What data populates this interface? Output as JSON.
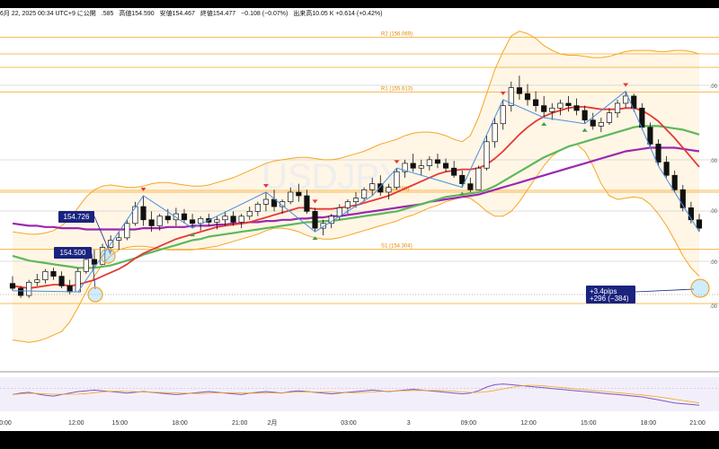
{
  "info": {
    "date": "6月 22, 2025 00:34 UTC+9 に公開",
    "open": ".585",
    "high": "高値154.590",
    "low": "安値154.467",
    "close": "終値154.477",
    "change": "−0.108 (−0.07%)",
    "volume": "出来高10.05 K +0.614 (+0.42%)"
  },
  "watermark": "USDJPY",
  "chart_data": {
    "type": "candlestick",
    "levels": [
      {
        "name": "R2",
        "label": "R2 (156.069)",
        "value": 156.069
      },
      {
        "name": "R1",
        "label": "R1 (155.613)",
        "value": 155.613
      },
      {
        "name": "P",
        "label": "P (154.780)",
        "value": 154.78
      },
      {
        "name": "S1",
        "label": "S1 (154.304)",
        "value": 154.304
      }
    ],
    "annotations": [
      {
        "text": "154.726"
      },
      {
        "text": "154.500"
      },
      {
        "text": "+3.4pips\n+296 (−384)"
      }
    ],
    "x_ticks": [
      "0:00",
      "12:00",
      "15:00",
      "18:00",
      "21:00",
      "2月",
      "03:00",
      "3",
      "09:00",
      "12:00",
      "15:00",
      "18:00",
      "21:00"
    ],
    "right_edge_labels": [
      ".00",
      ".00",
      ".00",
      ".00",
      ".00",
      ".00"
    ],
    "ohlc": [
      [
        154.02,
        154.08,
        153.96,
        153.98
      ],
      [
        153.98,
        154.0,
        153.9,
        153.92
      ],
      [
        153.92,
        154.05,
        153.9,
        154.03
      ],
      [
        154.03,
        154.1,
        154.0,
        154.05
      ],
      [
        154.05,
        154.14,
        154.02,
        154.12
      ],
      [
        154.12,
        154.15,
        154.05,
        154.08
      ],
      [
        154.08,
        154.12,
        153.98,
        154.0
      ],
      [
        154.0,
        154.05,
        153.93,
        153.95
      ],
      [
        153.95,
        154.15,
        153.95,
        154.12
      ],
      [
        154.12,
        154.25,
        154.1,
        154.22
      ],
      [
        154.22,
        154.3,
        154.15,
        154.18
      ],
      [
        154.18,
        154.35,
        154.18,
        154.32
      ],
      [
        154.32,
        154.42,
        154.28,
        154.38
      ],
      [
        154.38,
        154.45,
        154.3,
        154.4
      ],
      [
        154.4,
        154.55,
        154.38,
        154.52
      ],
      [
        154.52,
        154.7,
        154.5,
        154.66
      ],
      [
        154.66,
        154.75,
        154.5,
        154.55
      ],
      [
        154.55,
        154.62,
        154.45,
        154.5
      ],
      [
        154.5,
        154.6,
        154.46,
        154.58
      ],
      [
        154.58,
        154.64,
        154.52,
        154.55
      ],
      [
        154.55,
        154.65,
        154.5,
        154.6
      ],
      [
        154.6,
        154.64,
        154.52,
        154.55
      ],
      [
        154.55,
        154.6,
        154.48,
        154.52
      ],
      [
        154.52,
        154.58,
        154.46,
        154.56
      ],
      [
        154.56,
        154.6,
        154.5,
        154.53
      ],
      [
        154.53,
        154.58,
        154.47,
        154.55
      ],
      [
        154.55,
        154.62,
        154.5,
        154.58
      ],
      [
        154.58,
        154.62,
        154.5,
        154.53
      ],
      [
        154.53,
        154.6,
        154.48,
        154.58
      ],
      [
        154.58,
        154.66,
        154.55,
        154.62
      ],
      [
        154.62,
        154.7,
        154.58,
        154.68
      ],
      [
        154.68,
        154.78,
        154.62,
        154.72
      ],
      [
        154.72,
        154.8,
        154.62,
        154.66
      ],
      [
        154.66,
        154.72,
        154.6,
        154.7
      ],
      [
        154.7,
        154.82,
        154.68,
        154.78
      ],
      [
        154.78,
        154.85,
        154.7,
        154.75
      ],
      [
        154.75,
        154.8,
        154.6,
        154.62
      ],
      [
        154.62,
        154.65,
        154.45,
        154.48
      ],
      [
        154.48,
        154.55,
        154.42,
        154.52
      ],
      [
        154.52,
        154.6,
        154.48,
        154.58
      ],
      [
        154.58,
        154.68,
        154.55,
        154.65
      ],
      [
        154.65,
        154.72,
        154.6,
        154.7
      ],
      [
        154.7,
        154.78,
        154.65,
        154.73
      ],
      [
        154.73,
        154.82,
        154.7,
        154.8
      ],
      [
        154.8,
        154.9,
        154.75,
        154.85
      ],
      [
        154.85,
        154.92,
        154.75,
        154.78
      ],
      [
        154.78,
        154.85,
        154.72,
        154.82
      ],
      [
        154.82,
        154.98,
        154.8,
        154.95
      ],
      [
        154.95,
        155.05,
        154.9,
        155.02
      ],
      [
        155.02,
        155.1,
        154.95,
        154.98
      ],
      [
        154.98,
        155.05,
        154.92,
        155.0
      ],
      [
        155.0,
        155.08,
        154.96,
        155.05
      ],
      [
        155.05,
        155.1,
        154.98,
        155.02
      ],
      [
        155.02,
        155.06,
        154.95,
        154.98
      ],
      [
        154.98,
        155.04,
        154.9,
        154.92
      ],
      [
        154.92,
        154.96,
        154.82,
        154.85
      ],
      [
        154.85,
        154.9,
        154.78,
        154.8
      ],
      [
        154.8,
        155.0,
        154.8,
        154.98
      ],
      [
        154.98,
        155.25,
        154.96,
        155.2
      ],
      [
        155.2,
        155.4,
        155.15,
        155.35
      ],
      [
        155.35,
        155.55,
        155.3,
        155.5
      ],
      [
        155.5,
        155.7,
        155.45,
        155.65
      ],
      [
        155.65,
        155.75,
        155.55,
        155.6
      ],
      [
        155.6,
        155.68,
        155.5,
        155.55
      ],
      [
        155.55,
        155.62,
        155.45,
        155.5
      ],
      [
        155.5,
        155.58,
        155.4,
        155.45
      ],
      [
        155.45,
        155.52,
        155.38,
        155.48
      ],
      [
        155.48,
        155.55,
        155.42,
        155.52
      ],
      [
        155.52,
        155.58,
        155.45,
        155.5
      ],
      [
        155.5,
        155.56,
        155.42,
        155.46
      ],
      [
        155.46,
        155.5,
        155.35,
        155.38
      ],
      [
        155.38,
        155.44,
        155.3,
        155.33
      ],
      [
        155.33,
        155.4,
        155.28,
        155.36
      ],
      [
        155.36,
        155.48,
        155.34,
        155.44
      ],
      [
        155.44,
        155.55,
        155.4,
        155.52
      ],
      [
        155.52,
        155.62,
        155.48,
        155.58
      ],
      [
        155.58,
        155.6,
        155.45,
        155.48
      ],
      [
        155.48,
        155.52,
        155.3,
        155.32
      ],
      [
        155.32,
        155.36,
        155.15,
        155.18
      ],
      [
        155.18,
        155.22,
        155.0,
        155.03
      ],
      [
        155.03,
        155.08,
        154.9,
        154.92
      ],
      [
        154.92,
        154.96,
        154.78,
        154.8
      ],
      [
        154.8,
        154.84,
        154.62,
        154.65
      ],
      [
        154.65,
        154.7,
        154.52,
        154.55
      ],
      [
        154.55,
        154.6,
        154.45,
        154.48
      ]
    ],
    "ma_red": [
      154.0,
      153.99,
      153.98,
      153.99,
      154.0,
      154.01,
      154.01,
      154.0,
      154.01,
      154.03,
      154.05,
      154.08,
      154.11,
      154.14,
      154.18,
      154.23,
      154.27,
      154.3,
      154.33,
      154.36,
      154.39,
      154.41,
      154.43,
      154.45,
      154.47,
      154.49,
      154.5,
      154.51,
      154.52,
      154.53,
      154.55,
      154.57,
      154.59,
      154.61,
      154.63,
      154.65,
      154.65,
      154.64,
      154.64,
      154.64,
      154.65,
      154.66,
      154.67,
      154.69,
      154.71,
      154.73,
      154.75,
      154.78,
      154.81,
      154.84,
      154.87,
      154.9,
      154.93,
      154.95,
      154.96,
      154.97,
      154.97,
      154.98,
      155.01,
      155.06,
      155.12,
      155.19,
      155.26,
      155.32,
      155.37,
      155.41,
      155.44,
      155.46,
      155.48,
      155.49,
      155.49,
      155.48,
      155.47,
      155.47,
      155.47,
      155.48,
      155.48,
      155.46,
      155.42,
      155.37,
      155.3,
      155.23,
      155.15,
      155.07,
      154.99
    ],
    "ma_green": [
      154.25,
      154.23,
      154.21,
      154.2,
      154.19,
      154.18,
      154.17,
      154.16,
      154.15,
      154.15,
      154.15,
      154.16,
      154.17,
      154.19,
      154.21,
      154.23,
      154.26,
      154.28,
      154.3,
      154.32,
      154.34,
      154.36,
      154.38,
      154.39,
      154.41,
      154.42,
      154.43,
      154.44,
      154.45,
      154.46,
      154.47,
      154.48,
      154.49,
      154.5,
      154.51,
      154.52,
      154.53,
      154.53,
      154.54,
      154.54,
      154.55,
      154.56,
      154.57,
      154.58,
      154.59,
      154.6,
      154.61,
      154.62,
      154.64,
      154.66,
      154.68,
      154.7,
      154.72,
      154.74,
      154.75,
      154.76,
      154.77,
      154.78,
      154.8,
      154.83,
      154.87,
      154.91,
      154.95,
      154.99,
      155.03,
      155.07,
      155.1,
      155.13,
      155.16,
      155.18,
      155.2,
      155.22,
      155.24,
      155.26,
      155.28,
      155.3,
      155.32,
      155.33,
      155.33,
      155.33,
      155.32,
      155.31,
      155.3,
      155.28,
      155.26
    ],
    "ma_purple": [
      154.52,
      154.51,
      154.5,
      154.5,
      154.49,
      154.49,
      154.48,
      154.48,
      154.48,
      154.47,
      154.47,
      154.47,
      154.47,
      154.47,
      154.47,
      154.47,
      154.48,
      154.48,
      154.48,
      154.49,
      154.49,
      154.49,
      154.5,
      154.5,
      154.5,
      154.51,
      154.51,
      154.52,
      154.52,
      154.53,
      154.53,
      154.54,
      154.54,
      154.55,
      154.55,
      154.56,
      154.56,
      154.57,
      154.57,
      154.58,
      154.58,
      154.59,
      154.6,
      154.61,
      154.62,
      154.63,
      154.64,
      154.65,
      154.66,
      154.67,
      154.68,
      154.7,
      154.71,
      154.72,
      154.73,
      154.74,
      154.75,
      154.76,
      154.78,
      154.8,
      154.82,
      154.84,
      154.86,
      154.88,
      154.9,
      154.92,
      154.94,
      154.96,
      154.98,
      155.0,
      155.02,
      155.04,
      155.06,
      155.08,
      155.1,
      155.12,
      155.13,
      155.14,
      155.15,
      155.15,
      155.15,
      155.15,
      155.14,
      155.13,
      155.12
    ],
    "bb_upper": [
      154.45,
      154.44,
      154.43,
      154.43,
      154.44,
      154.46,
      154.5,
      154.56,
      154.65,
      154.74,
      154.8,
      154.83,
      154.84,
      154.83,
      154.82,
      154.82,
      154.83,
      154.85,
      154.86,
      154.86,
      154.85,
      154.84,
      154.83,
      154.83,
      154.84,
      154.86,
      154.88,
      154.9,
      154.93,
      154.96,
      154.99,
      155.02,
      155.04,
      155.05,
      155.06,
      155.07,
      155.07,
      155.06,
      155.05,
      155.05,
      155.06,
      155.08,
      155.1,
      155.12,
      155.15,
      155.18,
      155.2,
      155.22,
      155.25,
      155.27,
      155.28,
      155.28,
      155.27,
      155.25,
      155.22,
      155.2,
      155.25,
      155.4,
      155.6,
      155.8,
      155.95,
      156.08,
      156.12,
      156.1,
      156.06,
      156.0,
      155.96,
      155.93,
      155.92,
      155.92,
      155.91,
      155.9,
      155.9,
      155.91,
      155.93,
      155.95,
      155.96,
      155.96,
      155.96,
      155.95,
      155.95,
      155.96,
      155.96,
      155.95,
      155.93
    ],
    "bb_lower": [
      153.55,
      153.54,
      153.53,
      153.54,
      153.56,
      153.59,
      153.62,
      153.7,
      153.82,
      153.95,
      154.08,
      154.18,
      154.25,
      154.3,
      154.32,
      154.33,
      154.33,
      154.32,
      154.31,
      154.3,
      154.3,
      154.3,
      154.3,
      154.31,
      154.32,
      154.33,
      154.35,
      154.37,
      154.39,
      154.41,
      154.43,
      154.46,
      154.48,
      154.48,
      154.47,
      154.45,
      154.42,
      154.4,
      154.39,
      154.39,
      154.4,
      154.42,
      154.44,
      154.46,
      154.48,
      154.5,
      154.52,
      154.54,
      154.57,
      154.59,
      154.62,
      154.65,
      154.67,
      154.7,
      154.72,
      154.74,
      154.73,
      154.68,
      154.62,
      154.58,
      154.58,
      154.62,
      154.7,
      154.8,
      154.9,
      155.0,
      155.08,
      155.13,
      155.16,
      155.18,
      155.12,
      155.0,
      154.85,
      154.75,
      154.72,
      154.73,
      154.74,
      154.73,
      154.68,
      154.6,
      154.5,
      154.38,
      154.25,
      154.15,
      154.08
    ],
    "oscillator": [
      42,
      44,
      45,
      43,
      41,
      40,
      42,
      44,
      46,
      47,
      48,
      47,
      46,
      45,
      44,
      45,
      46,
      45,
      44,
      43,
      42,
      43,
      44,
      45,
      46,
      45,
      44,
      43,
      42,
      44,
      45,
      46,
      45,
      44,
      46,
      47,
      46,
      45,
      44,
      43,
      44,
      45,
      46,
      47,
      48,
      47,
      46,
      47,
      48,
      49,
      48,
      47,
      46,
      45,
      44,
      43,
      44,
      47,
      52,
      55,
      56,
      55,
      54,
      53,
      52,
      51,
      50,
      49,
      48,
      47,
      46,
      45,
      44,
      43,
      42,
      41,
      40,
      39,
      37,
      35,
      33,
      31,
      30,
      29,
      28
    ]
  }
}
